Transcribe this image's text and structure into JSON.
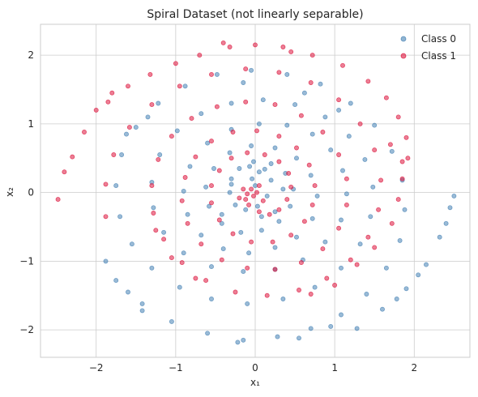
{
  "chart_data": {
    "type": "scatter",
    "title": "Spiral Dataset (not linearly separable)",
    "xlabel": "x₁",
    "ylabel": "x₂",
    "xlim": [
      -2.7,
      2.7
    ],
    "ylim": [
      -2.4,
      2.45
    ],
    "xticks": [
      -2,
      -1,
      0,
      1,
      2
    ],
    "yticks": [
      -2,
      -1,
      0,
      1,
      2
    ],
    "tick_labels_x": [
      "−2",
      "−1",
      "0",
      "1",
      "2"
    ],
    "tick_labels_y": [
      "−2",
      "−1",
      "0",
      "1",
      "2"
    ],
    "grid": true,
    "legend_position": "top-right",
    "series": [
      {
        "name": "Class 0",
        "color": "#4682b4",
        "points": [
          [
            0.0,
            0.1
          ],
          [
            -0.04,
            0.2
          ],
          [
            0.05,
            0.3
          ],
          [
            -0.07,
            0.38
          ],
          [
            0.12,
            0.34
          ],
          [
            0.2,
            0.18
          ],
          [
            0.15,
            -0.05
          ],
          [
            0.03,
            -0.2
          ],
          [
            -0.12,
            -0.25
          ],
          [
            -0.25,
            -0.18
          ],
          [
            -0.32,
            0.0
          ],
          [
            -0.3,
            0.2
          ],
          [
            -0.2,
            0.35
          ],
          [
            -0.02,
            0.45
          ],
          [
            0.2,
            0.42
          ],
          [
            0.38,
            0.28
          ],
          [
            0.48,
            0.05
          ],
          [
            0.44,
            -0.2
          ],
          [
            0.3,
            -0.42
          ],
          [
            0.08,
            -0.55
          ],
          [
            -0.18,
            -0.58
          ],
          [
            -0.42,
            -0.45
          ],
          [
            -0.58,
            -0.2
          ],
          [
            -0.62,
            0.08
          ],
          [
            -0.52,
            0.35
          ],
          [
            -0.32,
            0.58
          ],
          [
            -0.05,
            0.68
          ],
          [
            0.25,
            0.65
          ],
          [
            0.52,
            0.5
          ],
          [
            0.7,
            0.25
          ],
          [
            0.78,
            -0.05
          ],
          [
            0.72,
            -0.38
          ],
          [
            0.52,
            -0.65
          ],
          [
            0.25,
            -0.8
          ],
          [
            -0.08,
            -0.88
          ],
          [
            -0.4,
            -0.82
          ],
          [
            -0.68,
            -0.62
          ],
          [
            -0.85,
            -0.32
          ],
          [
            -0.9,
            0.02
          ],
          [
            -0.82,
            0.38
          ],
          [
            -0.6,
            0.72
          ],
          [
            -0.3,
            0.92
          ],
          [
            0.05,
            1.0
          ],
          [
            0.4,
            0.98
          ],
          [
            0.72,
            0.85
          ],
          [
            0.95,
            0.62
          ],
          [
            1.1,
            0.32
          ],
          [
            1.15,
            -0.02
          ],
          [
            1.08,
            -0.4
          ],
          [
            0.88,
            -0.72
          ],
          [
            0.6,
            -0.98
          ],
          [
            0.25,
            -1.12
          ],
          [
            -0.15,
            -1.15
          ],
          [
            -0.55,
            -1.08
          ],
          [
            -0.9,
            -0.88
          ],
          [
            -1.15,
            -0.58
          ],
          [
            -1.28,
            -0.22
          ],
          [
            -1.3,
            0.15
          ],
          [
            -1.2,
            0.55
          ],
          [
            -0.98,
            0.9
          ],
          [
            -0.68,
            1.15
          ],
          [
            -0.3,
            1.3
          ],
          [
            0.1,
            1.35
          ],
          [
            0.5,
            1.28
          ],
          [
            0.88,
            1.1
          ],
          [
            1.18,
            0.82
          ],
          [
            1.38,
            0.48
          ],
          [
            1.48,
            0.08
          ],
          [
            1.45,
            -0.35
          ],
          [
            1.32,
            -0.75
          ],
          [
            1.08,
            -1.1
          ],
          [
            0.75,
            -1.38
          ],
          [
            0.35,
            -1.55
          ],
          [
            -0.1,
            -1.62
          ],
          [
            -0.55,
            -1.55
          ],
          [
            -0.95,
            -1.38
          ],
          [
            -1.3,
            -1.1
          ],
          [
            -1.55,
            -0.75
          ],
          [
            -1.7,
            -0.35
          ],
          [
            -1.75,
            0.1
          ],
          [
            -1.68,
            0.55
          ],
          [
            -1.5,
            0.95
          ],
          [
            -1.22,
            1.3
          ],
          [
            -0.88,
            1.55
          ],
          [
            -0.48,
            1.72
          ],
          [
            -0.05,
            1.78
          ],
          [
            0.4,
            1.72
          ],
          [
            0.82,
            1.58
          ],
          [
            1.2,
            1.3
          ],
          [
            1.5,
            0.98
          ],
          [
            1.72,
            0.6
          ],
          [
            1.85,
            0.18
          ],
          [
            1.88,
            -0.25
          ],
          [
            1.82,
            -0.7
          ],
          [
            1.65,
            -1.1
          ],
          [
            1.4,
            -1.48
          ],
          [
            1.08,
            -1.78
          ],
          [
            0.7,
            -1.98
          ],
          [
            0.28,
            -2.1
          ],
          [
            -0.15,
            -2.15
          ],
          [
            -0.6,
            -2.05
          ],
          [
            -1.05,
            -1.88
          ],
          [
            -1.42,
            -1.62
          ],
          [
            -1.75,
            -1.28
          ],
          [
            1.28,
            -1.98
          ],
          [
            1.6,
            -1.7
          ],
          [
            1.9,
            -1.4
          ],
          [
            2.15,
            -1.05
          ],
          [
            2.32,
            -0.65
          ],
          [
            2.45,
            -0.22
          ],
          [
            2.5,
            -0.05
          ],
          [
            -1.42,
            -1.72
          ],
          [
            -0.22,
            -2.18
          ],
          [
            0.55,
            -2.12
          ],
          [
            0.95,
            -1.95
          ],
          [
            1.78,
            -1.55
          ],
          [
            2.05,
            -1.2
          ],
          [
            2.4,
            -0.45
          ],
          [
            -1.6,
            -1.45
          ],
          [
            -1.88,
            -1.0
          ],
          [
            -1.62,
            0.85
          ],
          [
            -1.35,
            1.1
          ],
          [
            1.05,
            1.2
          ],
          [
            0.62,
            1.45
          ],
          [
            -0.15,
            1.6
          ],
          [
            -0.3,
            0.12
          ],
          [
            0.08,
            -0.35
          ],
          [
            0.25,
            -0.28
          ],
          [
            0.35,
            0.05
          ],
          [
            -0.42,
            -0.32
          ]
        ]
      },
      {
        "name": "Class 1",
        "color": "#dc143c",
        "points": [
          [
            -0.02,
            -0.05
          ],
          [
            -0.1,
            -0.02
          ],
          [
            -0.05,
            0.05
          ],
          [
            0.02,
            0.0
          ],
          [
            -0.12,
            -0.1
          ],
          [
            -0.08,
            -0.18
          ],
          [
            0.05,
            -0.28
          ],
          [
            0.18,
            -0.32
          ],
          [
            0.3,
            -0.25
          ],
          [
            0.4,
            -0.1
          ],
          [
            0.45,
            0.08
          ],
          [
            0.42,
            0.28
          ],
          [
            0.3,
            0.45
          ],
          [
            0.12,
            0.55
          ],
          [
            -0.1,
            0.58
          ],
          [
            -0.3,
            0.5
          ],
          [
            -0.45,
            0.32
          ],
          [
            -0.55,
            0.1
          ],
          [
            -0.55,
            -0.15
          ],
          [
            -0.45,
            -0.4
          ],
          [
            -0.28,
            -0.6
          ],
          [
            -0.05,
            -0.72
          ],
          [
            0.22,
            -0.72
          ],
          [
            0.45,
            -0.62
          ],
          [
            0.62,
            -0.42
          ],
          [
            0.72,
            -0.18
          ],
          [
            0.75,
            0.1
          ],
          [
            0.68,
            0.4
          ],
          [
            0.52,
            0.65
          ],
          [
            0.3,
            0.82
          ],
          [
            0.02,
            0.9
          ],
          [
            -0.28,
            0.88
          ],
          [
            -0.55,
            0.75
          ],
          [
            -0.75,
            0.52
          ],
          [
            -0.88,
            0.22
          ],
          [
            -0.92,
            -0.12
          ],
          [
            -0.85,
            -0.45
          ],
          [
            -0.68,
            -0.75
          ],
          [
            -0.42,
            -0.98
          ],
          [
            -0.1,
            -1.1
          ],
          [
            0.25,
            -1.12
          ],
          [
            0.58,
            -1.02
          ],
          [
            0.85,
            -0.82
          ],
          [
            1.05,
            -0.52
          ],
          [
            1.15,
            -0.18
          ],
          [
            1.15,
            0.2
          ],
          [
            1.05,
            0.55
          ],
          [
            0.85,
            0.88
          ],
          [
            0.58,
            1.12
          ],
          [
            0.25,
            1.28
          ],
          [
            -0.12,
            1.32
          ],
          [
            -0.48,
            1.25
          ],
          [
            -0.8,
            1.08
          ],
          [
            -1.05,
            0.82
          ],
          [
            -1.22,
            0.48
          ],
          [
            -1.3,
            0.1
          ],
          [
            -1.28,
            -0.3
          ],
          [
            -1.15,
            -0.68
          ],
          [
            -0.92,
            -1.02
          ],
          [
            -0.62,
            -1.28
          ],
          [
            -0.25,
            -1.45
          ],
          [
            0.15,
            -1.5
          ],
          [
            0.55,
            -1.42
          ],
          [
            0.9,
            -1.25
          ],
          [
            1.2,
            -0.98
          ],
          [
            1.42,
            -0.65
          ],
          [
            1.55,
            -0.25
          ],
          [
            1.58,
            0.18
          ],
          [
            1.5,
            0.62
          ],
          [
            1.32,
            1.0
          ],
          [
            1.05,
            1.35
          ],
          [
            0.7,
            1.6
          ],
          [
            0.3,
            1.75
          ],
          [
            -0.12,
            1.8
          ],
          [
            -0.55,
            1.72
          ],
          [
            -0.95,
            1.55
          ],
          [
            -1.3,
            1.28
          ],
          [
            -1.58,
            0.95
          ],
          [
            -1.78,
            0.55
          ],
          [
            -1.88,
            0.12
          ],
          [
            -1.88,
            -0.35
          ],
          [
            -2.15,
            0.88
          ],
          [
            -2.3,
            0.52
          ],
          [
            -2.4,
            0.3
          ],
          [
            -2.48,
            -0.1
          ],
          [
            -2.0,
            1.2
          ],
          [
            -1.85,
            1.32
          ],
          [
            -1.6,
            1.55
          ],
          [
            -1.32,
            1.72
          ],
          [
            -1.0,
            1.88
          ],
          [
            -0.7,
            2.0
          ],
          [
            -0.4,
            2.18
          ],
          [
            0.0,
            2.15
          ],
          [
            0.35,
            2.12
          ],
          [
            0.72,
            2.0
          ],
          [
            1.1,
            1.85
          ],
          [
            1.42,
            1.62
          ],
          [
            1.65,
            1.38
          ],
          [
            1.8,
            1.1
          ],
          [
            1.9,
            0.8
          ],
          [
            1.92,
            0.5
          ],
          [
            1.85,
            0.2
          ],
          [
            1.8,
            -0.1
          ],
          [
            1.72,
            -0.45
          ],
          [
            1.5,
            -0.8
          ],
          [
            1.28,
            -1.05
          ],
          [
            1.0,
            -1.35
          ],
          [
            0.7,
            -1.48
          ],
          [
            -0.75,
            -1.25
          ],
          [
            -1.05,
            -0.95
          ],
          [
            -1.25,
            -0.55
          ],
          [
            0.05,
            0.1
          ],
          [
            -0.15,
            0.05
          ],
          [
            0.1,
            -0.12
          ],
          [
            -0.2,
            -0.08
          ],
          [
            1.7,
            0.7
          ],
          [
            1.85,
            0.45
          ],
          [
            -0.32,
            2.12
          ],
          [
            0.45,
            2.05
          ],
          [
            -1.8,
            1.45
          ]
        ]
      }
    ]
  }
}
